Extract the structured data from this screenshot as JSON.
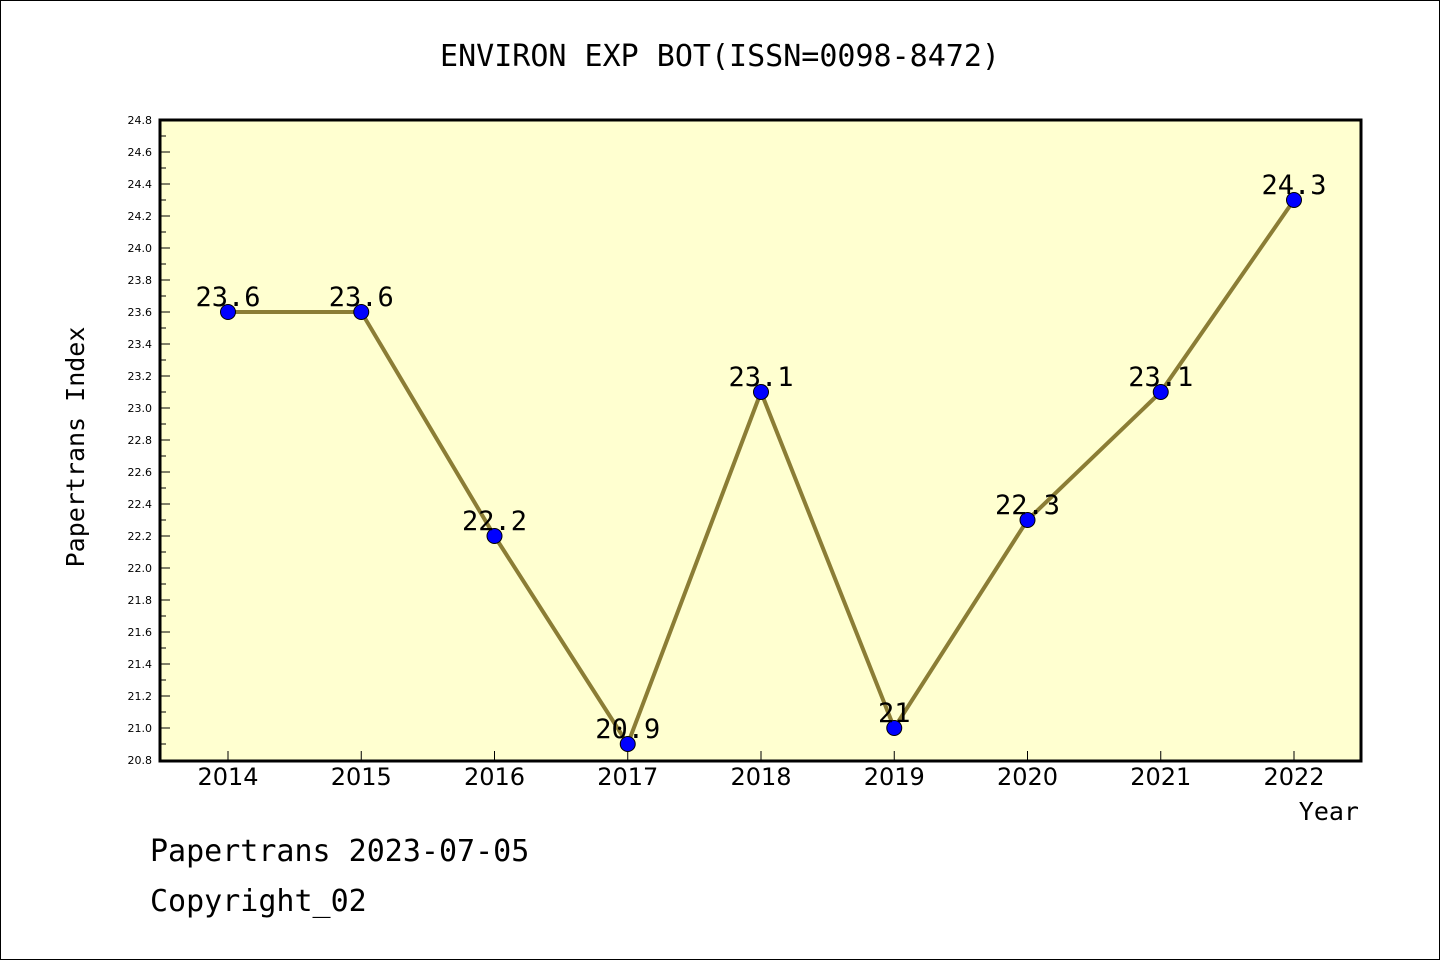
{
  "chart_data": {
    "type": "line",
    "title": "ENVIRON EXP BOT(ISSN=0098-8472)",
    "xlabel": "Year",
    "ylabel": "Papertrans Index",
    "categories": [
      "2014",
      "2015",
      "2016",
      "2017",
      "2018",
      "2019",
      "2020",
      "2021",
      "2022"
    ],
    "series": [
      {
        "values": [
          23.6,
          23.6,
          22.2,
          20.9,
          23.1,
          21.0,
          22.3,
          23.1,
          24.3
        ]
      }
    ],
    "data_labels": [
      "23.6",
      "23.6",
      "22.2",
      "20.9",
      "23.1",
      "21",
      "22.3",
      "23.1",
      "24.3"
    ],
    "ylim": [
      20.8,
      24.8
    ],
    "yticks": [
      "20.8",
      "21.0",
      "21.2",
      "21.4",
      "21.6",
      "21.8",
      "22.0",
      "22.2",
      "22.4",
      "22.6",
      "22.8",
      "23.0",
      "23.2",
      "23.4",
      "23.6",
      "23.8",
      "24.0",
      "24.2",
      "24.4",
      "24.6",
      "24.8"
    ],
    "grid": false,
    "colors": {
      "plot_background": "#ffffd0",
      "line": "#8b7d35",
      "marker": "#0000ff"
    }
  },
  "footer": {
    "line1": "Papertrans 2023-07-05",
    "line2": "Copyright_02"
  }
}
